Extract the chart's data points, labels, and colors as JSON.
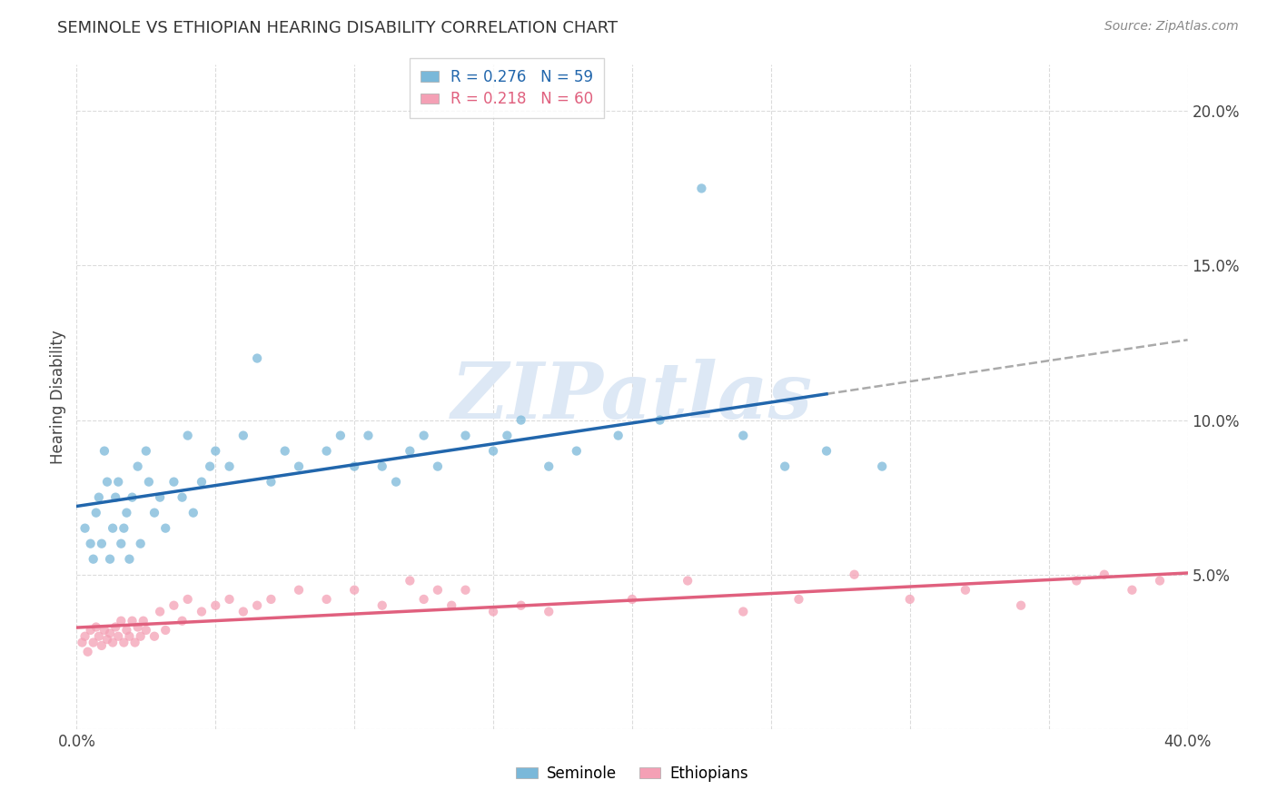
{
  "title": "SEMINOLE VS ETHIOPIAN HEARING DISABILITY CORRELATION CHART",
  "source": "Source: ZipAtlas.com",
  "ylabel": "Hearing Disability",
  "xlim": [
    0.0,
    0.4
  ],
  "ylim": [
    0.0,
    0.215
  ],
  "seminole_color": "#7ab8d9",
  "ethiopian_color": "#f4a0b5",
  "seminole_line_color": "#2166ac",
  "ethiopian_line_color": "#e0607e",
  "dashed_color": "#aaaaaa",
  "seminole_R": 0.276,
  "seminole_N": 59,
  "ethiopian_R": 0.218,
  "ethiopian_N": 60,
  "legend_blue": "#2166ac",
  "legend_pink": "#e0607e",
  "seminole_scatter_x": [
    0.003,
    0.005,
    0.006,
    0.007,
    0.008,
    0.009,
    0.01,
    0.011,
    0.012,
    0.013,
    0.014,
    0.015,
    0.016,
    0.017,
    0.018,
    0.019,
    0.02,
    0.022,
    0.023,
    0.025,
    0.026,
    0.028,
    0.03,
    0.032,
    0.035,
    0.038,
    0.04,
    0.042,
    0.045,
    0.048,
    0.05,
    0.055,
    0.06,
    0.065,
    0.07,
    0.075,
    0.08,
    0.09,
    0.095,
    0.1,
    0.105,
    0.11,
    0.115,
    0.12,
    0.125,
    0.13,
    0.14,
    0.15,
    0.155,
    0.16,
    0.17,
    0.18,
    0.195,
    0.21,
    0.225,
    0.24,
    0.255,
    0.27,
    0.29
  ],
  "seminole_scatter_y": [
    0.065,
    0.06,
    0.055,
    0.07,
    0.075,
    0.06,
    0.09,
    0.08,
    0.055,
    0.065,
    0.075,
    0.08,
    0.06,
    0.065,
    0.07,
    0.055,
    0.075,
    0.085,
    0.06,
    0.09,
    0.08,
    0.07,
    0.075,
    0.065,
    0.08,
    0.075,
    0.095,
    0.07,
    0.08,
    0.085,
    0.09,
    0.085,
    0.095,
    0.12,
    0.08,
    0.09,
    0.085,
    0.09,
    0.095,
    0.085,
    0.095,
    0.085,
    0.08,
    0.09,
    0.095,
    0.085,
    0.095,
    0.09,
    0.095,
    0.1,
    0.085,
    0.09,
    0.095,
    0.1,
    0.175,
    0.095,
    0.085,
    0.09,
    0.085
  ],
  "ethiopian_scatter_x": [
    0.002,
    0.003,
    0.004,
    0.005,
    0.006,
    0.007,
    0.008,
    0.009,
    0.01,
    0.011,
    0.012,
    0.013,
    0.014,
    0.015,
    0.016,
    0.017,
    0.018,
    0.019,
    0.02,
    0.021,
    0.022,
    0.023,
    0.024,
    0.025,
    0.028,
    0.03,
    0.032,
    0.035,
    0.038,
    0.04,
    0.045,
    0.05,
    0.055,
    0.06,
    0.065,
    0.07,
    0.08,
    0.09,
    0.1,
    0.11,
    0.12,
    0.125,
    0.13,
    0.135,
    0.14,
    0.15,
    0.16,
    0.17,
    0.2,
    0.22,
    0.24,
    0.26,
    0.28,
    0.3,
    0.32,
    0.34,
    0.36,
    0.37,
    0.38,
    0.39
  ],
  "ethiopian_scatter_y": [
    0.028,
    0.03,
    0.025,
    0.032,
    0.028,
    0.033,
    0.03,
    0.027,
    0.032,
    0.029,
    0.031,
    0.028,
    0.033,
    0.03,
    0.035,
    0.028,
    0.032,
    0.03,
    0.035,
    0.028,
    0.033,
    0.03,
    0.035,
    0.032,
    0.03,
    0.038,
    0.032,
    0.04,
    0.035,
    0.042,
    0.038,
    0.04,
    0.042,
    0.038,
    0.04,
    0.042,
    0.045,
    0.042,
    0.045,
    0.04,
    0.048,
    0.042,
    0.045,
    0.04,
    0.045,
    0.038,
    0.04,
    0.038,
    0.042,
    0.048,
    0.038,
    0.042,
    0.05,
    0.042,
    0.045,
    0.04,
    0.048,
    0.05,
    0.045,
    0.048
  ],
  "watermark_text": "ZIPatlas",
  "background_color": "#ffffff",
  "grid_color": "#cccccc",
  "seminole_line_x_end": 0.27,
  "dashed_line_x_start": 0.27,
  "dashed_line_x_end": 0.4
}
